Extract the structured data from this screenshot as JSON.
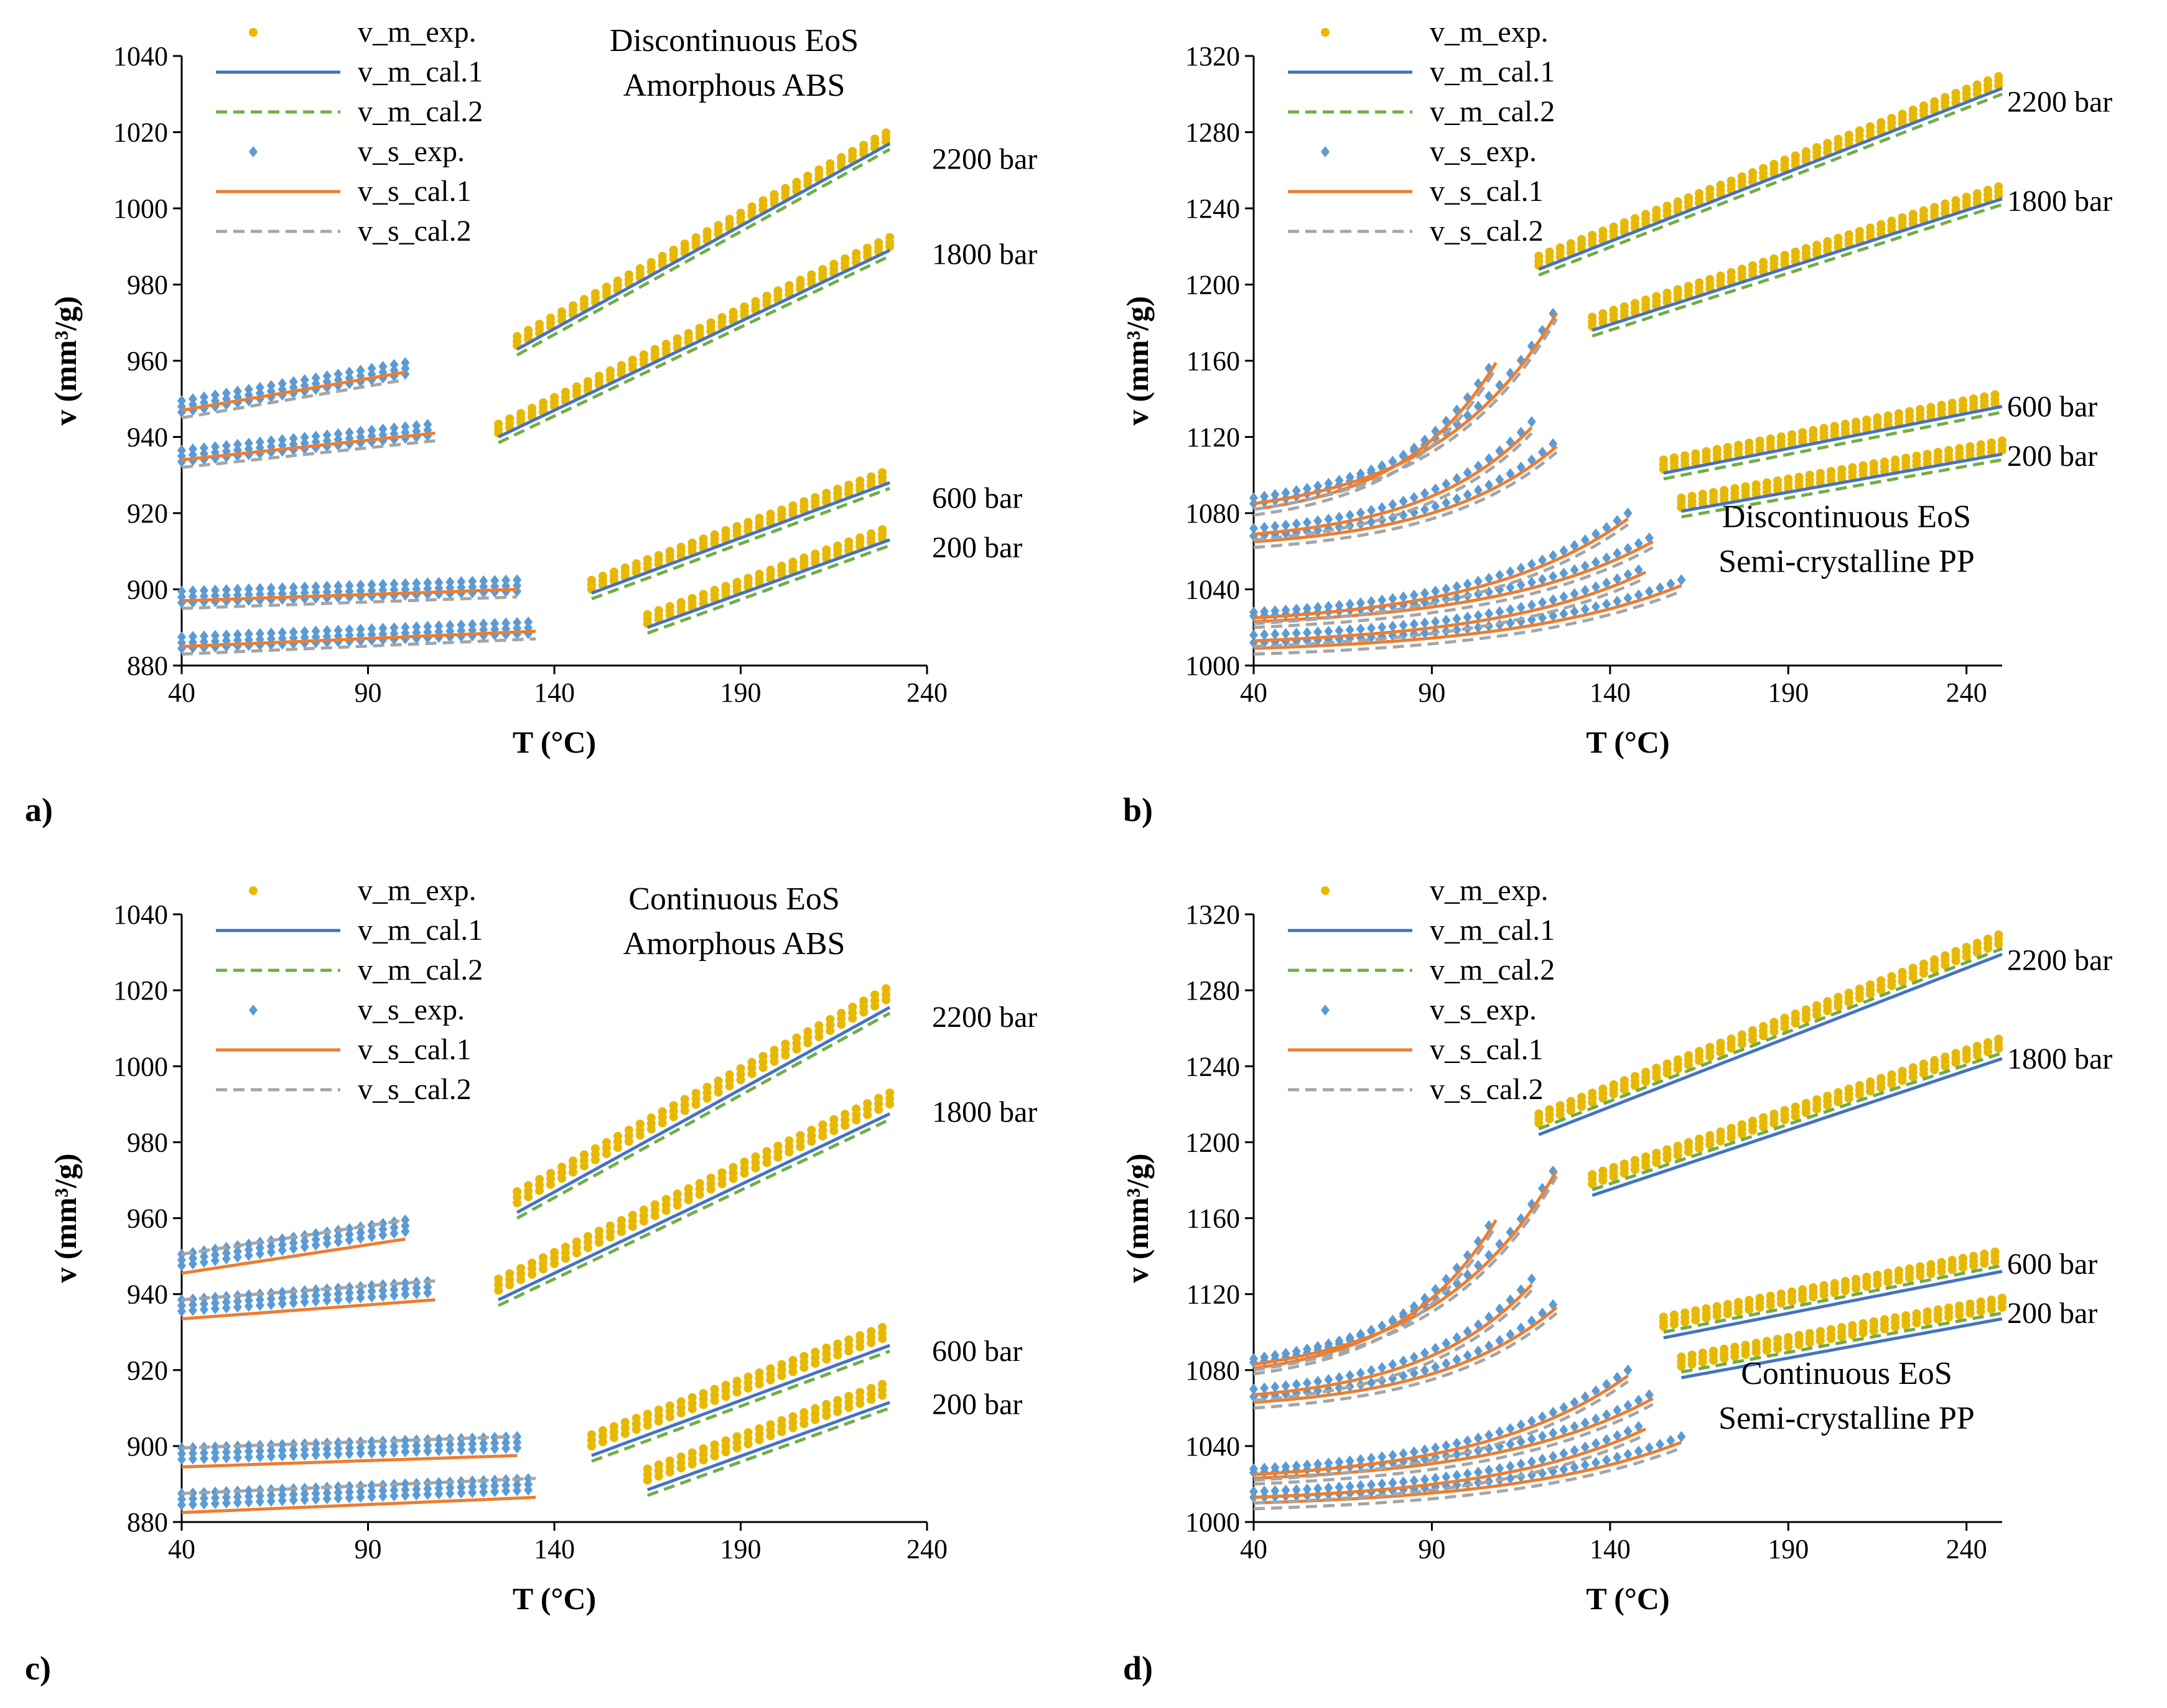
{
  "colors": {
    "v_m_exp": "#E8B800",
    "v_m_cal_1": "#4472C4",
    "v_m_cal_2": "#70AD47",
    "v_s_exp": "#5B9BD5",
    "v_s_cal_1": "#ED7D31",
    "v_s_cal_2": "#A5A5A5",
    "axis": "#000000"
  },
  "legend_labels": [
    "v_m_exp.",
    "v_m_cal.1",
    "v_m_cal.2",
    "v_s_exp.",
    "v_s_cal.1",
    "v_s_cal.2"
  ],
  "chart_data": [
    {
      "type": "scatter",
      "panel_label": "a)",
      "annotation": [
        "Discontinuous EoS",
        "Amorphous ABS"
      ],
      "xlabel": "T (°C)",
      "ylabel": "v (mm³/g)",
      "xlim": [
        40,
        240
      ],
      "ylim": [
        880,
        1040
      ],
      "xticks": [
        40,
        90,
        140,
        190,
        240
      ],
      "yticks": [
        880,
        900,
        920,
        940,
        960,
        980,
        1000,
        1020,
        1040
      ],
      "legend_position": "top-left",
      "pressure_labels": [
        {
          "text": "2200 bar",
          "y": 1013
        },
        {
          "text": "1800 bar",
          "y": 988
        },
        {
          "text": "600 bar",
          "y": 924
        },
        {
          "text": "200 bar",
          "y": 911
        }
      ],
      "melt_lines": [
        {
          "x": [
            125,
            230
          ],
          "y": [
            941,
            990
          ]
        },
        {
          "x": [
            130,
            230
          ],
          "y": [
            964,
            1018
          ]
        },
        {
          "x": [
            150,
            230
          ],
          "y": [
            900,
            929
          ]
        },
        {
          "x": [
            165,
            230
          ],
          "y": [
            891,
            914
          ]
        }
      ],
      "solid_lines": [
        {
          "x": [
            40,
            100
          ],
          "y": [
            948,
            958
          ]
        },
        {
          "x": [
            40,
            108
          ],
          "y": [
            935,
            942
          ]
        },
        {
          "x": [
            40,
            130
          ],
          "y": [
            898,
            901
          ]
        },
        {
          "x": [
            40,
            135
          ],
          "y": [
            886,
            890
          ]
        }
      ],
      "series": [
        {
          "name": "v_m_exp.",
          "style": "dot",
          "source": "melt",
          "offsets": [
            0,
            1.2,
            2.4
          ]
        },
        {
          "name": "v_m_cal.1",
          "style": "solid",
          "source": "melt",
          "offset": -1.0
        },
        {
          "name": "v_m_cal.2",
          "style": "dashed",
          "source": "melt",
          "offset": -2.5
        },
        {
          "name": "v_s_exp.",
          "style": "diamond",
          "source": "solid",
          "offsets": [
            -1.5,
            0,
            1.5
          ]
        },
        {
          "name": "v_s_cal.1",
          "style": "solid",
          "source": "solid",
          "offset": -1.0
        },
        {
          "name": "v_s_cal.2",
          "style": "dashed",
          "source": "solid",
          "offset": -3.0
        }
      ]
    },
    {
      "type": "scatter",
      "panel_label": "b)",
      "annotation": [
        "Discontinuous EoS",
        "Semi-crystalline  PP"
      ],
      "xlabel": "T (°C)",
      "ylabel": "v (mm³/g)",
      "xlim": [
        40,
        250
      ],
      "ylim": [
        1000,
        1320
      ],
      "xticks": [
        40,
        90,
        140,
        190,
        240
      ],
      "yticks": [
        1000,
        1040,
        1080,
        1120,
        1160,
        1200,
        1240,
        1280,
        1320
      ],
      "legend_position": "top-left",
      "pressure_labels": [
        {
          "text": "2200 bar",
          "y": 1296
        },
        {
          "text": "1800 bar",
          "y": 1244
        },
        {
          "text": "600 bar",
          "y": 1136
        },
        {
          "text": "200 bar",
          "y": 1110
        }
      ],
      "melt_lines": [
        {
          "x": [
            120,
            250
          ],
          "y": [
            1210,
            1305
          ]
        },
        {
          "x": [
            135,
            250
          ],
          "y": [
            1178,
            1247
          ]
        },
        {
          "x": [
            155,
            250
          ],
          "y": [
            1103,
            1138
          ]
        },
        {
          "x": [
            160,
            250
          ],
          "y": [
            1083,
            1113
          ]
        }
      ],
      "solid_curves": [
        {
          "x0": 40,
          "y0": 1088,
          "x1": 125,
          "y1": 1188
        },
        {
          "x0": 40,
          "y0": 1085,
          "x1": 108,
          "y1": 1162
        },
        {
          "x0": 40,
          "y0": 1072,
          "x1": 118,
          "y1": 1128
        },
        {
          "x0": 40,
          "y0": 1068,
          "x1": 125,
          "y1": 1118
        },
        {
          "x0": 40,
          "y0": 1028,
          "x1": 145,
          "y1": 1080
        },
        {
          "x0": 40,
          "y0": 1026,
          "x1": 152,
          "y1": 1068
        },
        {
          "x0": 40,
          "y0": 1016,
          "x1": 150,
          "y1": 1052
        },
        {
          "x0": 40,
          "y0": 1012,
          "x1": 160,
          "y1": 1045
        }
      ],
      "series": [
        {
          "name": "v_m_exp.",
          "style": "dot",
          "source": "melt",
          "offsets": [
            0,
            2.5,
            5
          ]
        },
        {
          "name": "v_m_cal.1",
          "style": "solid",
          "source": "melt",
          "offset": -2.0
        },
        {
          "name": "v_m_cal.2",
          "style": "dashed",
          "source": "melt",
          "offset": -5.0
        },
        {
          "name": "v_s_exp.",
          "style": "diamond",
          "source": "solid",
          "offsets": [
            0
          ]
        },
        {
          "name": "v_s_cal.1",
          "style": "solid",
          "source": "solid",
          "offset": -3.0
        },
        {
          "name": "v_s_cal.2",
          "style": "dashed",
          "source": "solid",
          "offset": -6.0
        }
      ]
    },
    {
      "type": "scatter",
      "panel_label": "c)",
      "annotation": [
        "Continuous EoS",
        "Amorphous ABS"
      ],
      "xlabel": "T (°C)",
      "ylabel": "v (mm³/g)",
      "xlim": [
        40,
        240
      ],
      "ylim": [
        880,
        1040
      ],
      "xticks": [
        40,
        90,
        140,
        190,
        240
      ],
      "yticks": [
        880,
        900,
        920,
        940,
        960,
        980,
        1000,
        1020,
        1040
      ],
      "legend_position": "top-left",
      "pressure_labels": [
        {
          "text": "2200 bar",
          "y": 1013
        },
        {
          "text": "1800 bar",
          "y": 988
        },
        {
          "text": "600 bar",
          "y": 925
        },
        {
          "text": "200 bar",
          "y": 911
        }
      ],
      "melt_lines": [
        {
          "x": [
            125,
            230
          ],
          "y": [
            941,
            990
          ]
        },
        {
          "x": [
            130,
            230
          ],
          "y": [
            964,
            1018
          ]
        },
        {
          "x": [
            150,
            230
          ],
          "y": [
            900,
            929
          ]
        },
        {
          "x": [
            165,
            230
          ],
          "y": [
            891,
            914
          ]
        }
      ],
      "solid_lines": [
        {
          "x": [
            40,
            100
          ],
          "y": [
            949,
            958
          ]
        },
        {
          "x": [
            40,
            108
          ],
          "y": [
            937,
            942
          ]
        },
        {
          "x": [
            40,
            130
          ],
          "y": [
            898,
            901
          ]
        },
        {
          "x": [
            40,
            135
          ],
          "y": [
            886,
            890
          ]
        }
      ],
      "series": [
        {
          "name": "v_m_exp.",
          "style": "dot",
          "source": "melt",
          "offsets": [
            0,
            1.5,
            3
          ]
        },
        {
          "name": "v_m_cal.1",
          "style": "solid",
          "source": "melt",
          "offset": -2.5
        },
        {
          "name": "v_m_cal.2",
          "style": "dashed",
          "source": "melt",
          "offset": -4.0
        },
        {
          "name": "v_s_exp.",
          "style": "diamond",
          "source": "solid",
          "offsets": [
            -1.5,
            0,
            1.5
          ]
        },
        {
          "name": "v_s_cal.1",
          "style": "solid",
          "source": "solid",
          "offset": -3.5
        },
        {
          "name": "v_s_cal.2",
          "style": "dashed",
          "source": "solid",
          "offset": 1.5
        }
      ]
    },
    {
      "type": "scatter",
      "panel_label": "d)",
      "annotation": [
        "Continuous EoS",
        "Semi-crystalline  PP"
      ],
      "xlabel": "T (°C)",
      "ylabel": "v (mm³/g)",
      "xlim": [
        40,
        250
      ],
      "ylim": [
        1000,
        1320
      ],
      "xticks": [
        40,
        90,
        140,
        190,
        240
      ],
      "yticks": [
        1000,
        1040,
        1080,
        1120,
        1160,
        1200,
        1240,
        1280,
        1320
      ],
      "legend_position": "top-left",
      "pressure_labels": [
        {
          "text": "2200 bar",
          "y": 1296
        },
        {
          "text": "1800 bar",
          "y": 1244
        },
        {
          "text": "600 bar",
          "y": 1136
        },
        {
          "text": "200 bar",
          "y": 1110
        }
      ],
      "melt_lines": [
        {
          "x": [
            120,
            250
          ],
          "y": [
            1210,
            1305
          ]
        },
        {
          "x": [
            135,
            250
          ],
          "y": [
            1178,
            1250
          ]
        },
        {
          "x": [
            155,
            250
          ],
          "y": [
            1103,
            1138
          ]
        },
        {
          "x": [
            160,
            250
          ],
          "y": [
            1082,
            1113
          ]
        }
      ],
      "solid_curves": [
        {
          "x0": 40,
          "y0": 1086,
          "x1": 125,
          "y1": 1188
        },
        {
          "x0": 40,
          "y0": 1084,
          "x1": 108,
          "y1": 1162
        },
        {
          "x0": 40,
          "y0": 1070,
          "x1": 118,
          "y1": 1128
        },
        {
          "x0": 40,
          "y0": 1066,
          "x1": 125,
          "y1": 1116
        },
        {
          "x0": 40,
          "y0": 1028,
          "x1": 145,
          "y1": 1080
        },
        {
          "x0": 40,
          "y0": 1026,
          "x1": 152,
          "y1": 1068
        },
        {
          "x0": 40,
          "y0": 1016,
          "x1": 150,
          "y1": 1052
        },
        {
          "x0": 40,
          "y0": 1013,
          "x1": 160,
          "y1": 1045
        }
      ],
      "series": [
        {
          "name": "v_m_exp.",
          "style": "dot",
          "source": "melt",
          "offsets": [
            0,
            2.5,
            5
          ]
        },
        {
          "name": "v_m_cal.1",
          "style": "solid",
          "source": "melt",
          "offset": -6.0
        },
        {
          "name": "v_m_cal.2",
          "style": "dashed",
          "source": "melt",
          "offset": -3.0
        },
        {
          "name": "v_s_exp.",
          "style": "diamond",
          "source": "solid",
          "offsets": [
            0
          ]
        },
        {
          "name": "v_s_cal.1",
          "style": "solid",
          "source": "solid",
          "offset": -3.0
        },
        {
          "name": "v_s_cal.2",
          "style": "dashed",
          "source": "solid",
          "offset": -6.0
        }
      ]
    }
  ]
}
